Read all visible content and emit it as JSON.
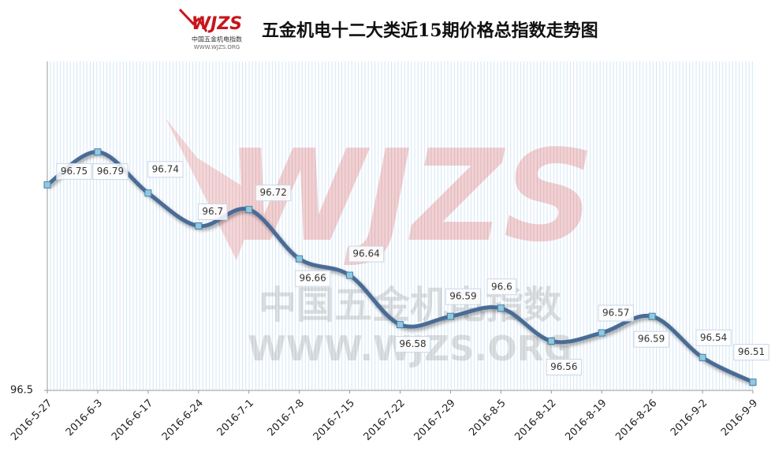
{
  "logo": {
    "mark": "WJZS",
    "name": "中国五金机电指数",
    "url": "WWW.WJZS.ORG"
  },
  "chart_data": {
    "type": "line",
    "title": "五金机电十二大类近15期价格总指数走势图",
    "categories": [
      "2016-5-27",
      "2016-6-3",
      "2016-6-17",
      "2016-6-24",
      "2016-7-1",
      "2016-7-8",
      "2016-7-15",
      "2016-7-22",
      "2016-7-29",
      "2016-8-5",
      "2016-8-12",
      "2016-8-19",
      "2016-8-26",
      "2016-9-2",
      "2016-9-9"
    ],
    "values": [
      96.75,
      96.79,
      96.74,
      96.7,
      96.72,
      96.66,
      96.64,
      96.58,
      96.59,
      96.6,
      96.56,
      96.57,
      96.59,
      96.54,
      96.51
    ],
    "color": "#4a6c96",
    "ylim": [
      96.5,
      96.9
    ],
    "yticks": [
      96.5
    ],
    "grid": true
  }
}
